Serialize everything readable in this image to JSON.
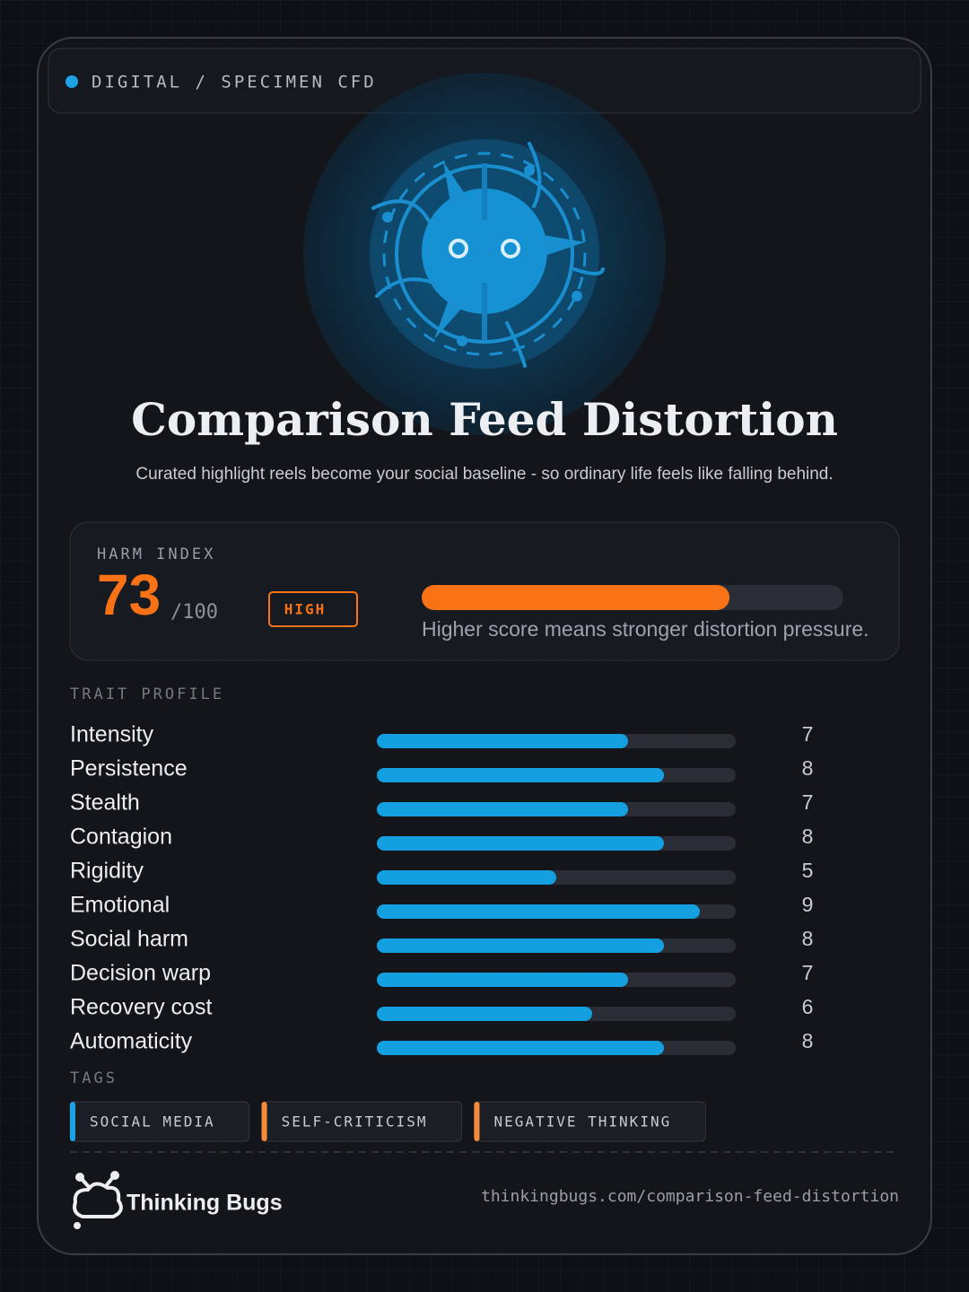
{
  "header": {
    "label": "DIGITAL / SPECIMEN CFD"
  },
  "title": "Comparison Feed Distortion",
  "subtitle": "Curated highlight reels become your social baseline - so ordinary life feels like falling behind.",
  "harm_index": {
    "label": "HARM INDEX",
    "value": 73,
    "max": {
      "value": 100,
      "label": "/100"
    },
    "level": "HIGH",
    "note": "Higher score means stronger distortion pressure.",
    "color": "#f97316"
  },
  "traits": {
    "label": "TRAIT PROFILE",
    "color": "#139fe0",
    "items": [
      {
        "name": "Intensity",
        "value": 7
      },
      {
        "name": "Persistence",
        "value": 8
      },
      {
        "name": "Stealth",
        "value": 7
      },
      {
        "name": "Contagion",
        "value": 8
      },
      {
        "name": "Rigidity",
        "value": 5
      },
      {
        "name": "Emotional",
        "value": 9
      },
      {
        "name": "Social harm",
        "value": 8
      },
      {
        "name": "Decision warp",
        "value": 7
      },
      {
        "name": "Recovery cost",
        "value": 6
      },
      {
        "name": "Automaticity",
        "value": 8
      }
    ]
  },
  "tags": {
    "label": "TAGS",
    "items": [
      {
        "text": "SOCIAL MEDIA",
        "color": "#1ea2e6"
      },
      {
        "text": "SELF-CRITICISM",
        "color": "#f58a3a"
      },
      {
        "text": "NEGATIVE THINKING",
        "color": "#f58a3a"
      }
    ]
  },
  "footer": {
    "brand": "Thinking Bugs",
    "url": "thinkingbugs.com/comparison-feed-distortion"
  }
}
